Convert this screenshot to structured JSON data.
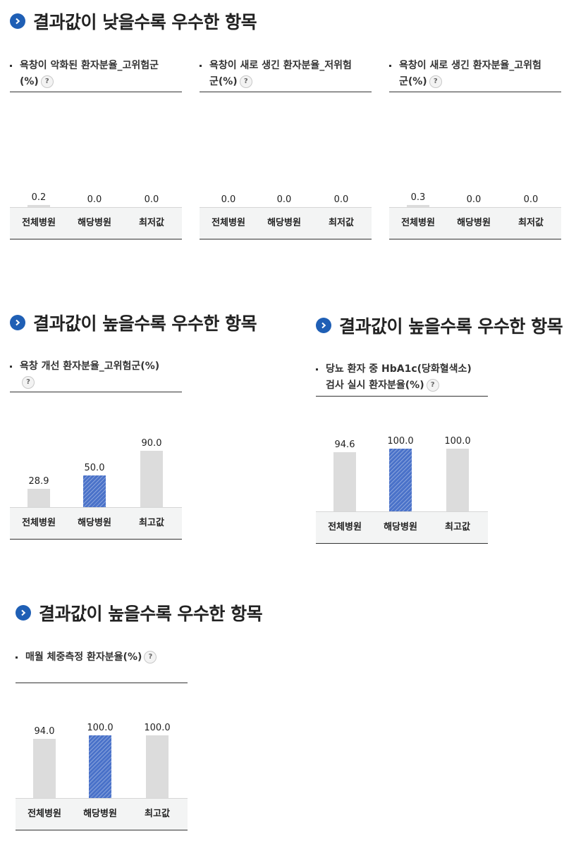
{
  "sections": [
    {
      "title": "결과값이 낮을수록 우수한 항목"
    },
    {
      "title": "결과값이 높을수록 우수한 항목"
    },
    {
      "title": "결과값이 높을수록 우수한 항목"
    },
    {
      "title": "결과값이 높을수록 우수한 항목"
    }
  ],
  "help_glyph": "?",
  "chart_data": [
    {
      "type": "bar",
      "title_lines": [
        "욕창이 악화된 환자분율_고위험군",
        "(%)"
      ],
      "categories": [
        "전체병원",
        "해당병원",
        "최저값"
      ],
      "values": [
        0.2,
        0.0,
        0.0
      ],
      "labels": [
        "0.2",
        "0.0",
        "0.0"
      ],
      "highlight_index": 1,
      "ylim": [
        0,
        100
      ],
      "colors": {
        "default": "#dcdcdc",
        "highlight": "#4a72c9"
      }
    },
    {
      "type": "bar",
      "title_lines": [
        "욕창이 새로 생긴 환자분율_저위험",
        "군(%)"
      ],
      "categories": [
        "전체병원",
        "해당병원",
        "최저값"
      ],
      "values": [
        0.0,
        0.0,
        0.0
      ],
      "labels": [
        "0.0",
        "0.0",
        "0.0"
      ],
      "highlight_index": 1,
      "ylim": [
        0,
        100
      ],
      "colors": {
        "default": "#dcdcdc",
        "highlight": "#4a72c9"
      }
    },
    {
      "type": "bar",
      "title_lines": [
        "욕창이 새로 생긴 환자분율_고위험",
        "군(%)"
      ],
      "categories": [
        "전체병원",
        "해당병원",
        "최저값"
      ],
      "values": [
        0.3,
        0.0,
        0.0
      ],
      "labels": [
        "0.3",
        "0.0",
        "0.0"
      ],
      "highlight_index": 1,
      "ylim": [
        0,
        100
      ],
      "colors": {
        "default": "#dcdcdc",
        "highlight": "#4a72c9"
      }
    },
    {
      "type": "bar",
      "title_lines": [
        "욕창 개선 환자분율_고위험군(%)",
        ""
      ],
      "categories": [
        "전체병원",
        "해당병원",
        "최고값"
      ],
      "values": [
        28.9,
        50.0,
        90.0
      ],
      "labels": [
        "28.9",
        "50.0",
        "90.0"
      ],
      "highlight_index": 1,
      "ylim": [
        0,
        100
      ],
      "colors": {
        "default": "#dcdcdc",
        "highlight": "#4a72c9"
      }
    },
    {
      "type": "bar",
      "title_lines": [
        "당뇨 환자 중 HbA1c(당화혈색소)",
        "검사 실시 환자분율(%)"
      ],
      "categories": [
        "전체병원",
        "해당병원",
        "최고값"
      ],
      "values": [
        94.6,
        100.0,
        100.0
      ],
      "labels": [
        "94.6",
        "100.0",
        "100.0"
      ],
      "highlight_index": 1,
      "ylim": [
        0,
        100
      ],
      "colors": {
        "default": "#dcdcdc",
        "highlight": "#4a72c9"
      }
    },
    {
      "type": "bar",
      "title_lines": [
        "매월 체중측정 환자분율(%)",
        ""
      ],
      "categories": [
        "전체병원",
        "해당병원",
        "최고값"
      ],
      "values": [
        94.0,
        100.0,
        100.0
      ],
      "labels": [
        "94.0",
        "100.0",
        "100.0"
      ],
      "highlight_index": 1,
      "ylim": [
        0,
        100
      ],
      "colors": {
        "default": "#dcdcdc",
        "highlight": "#4a72c9"
      }
    }
  ]
}
